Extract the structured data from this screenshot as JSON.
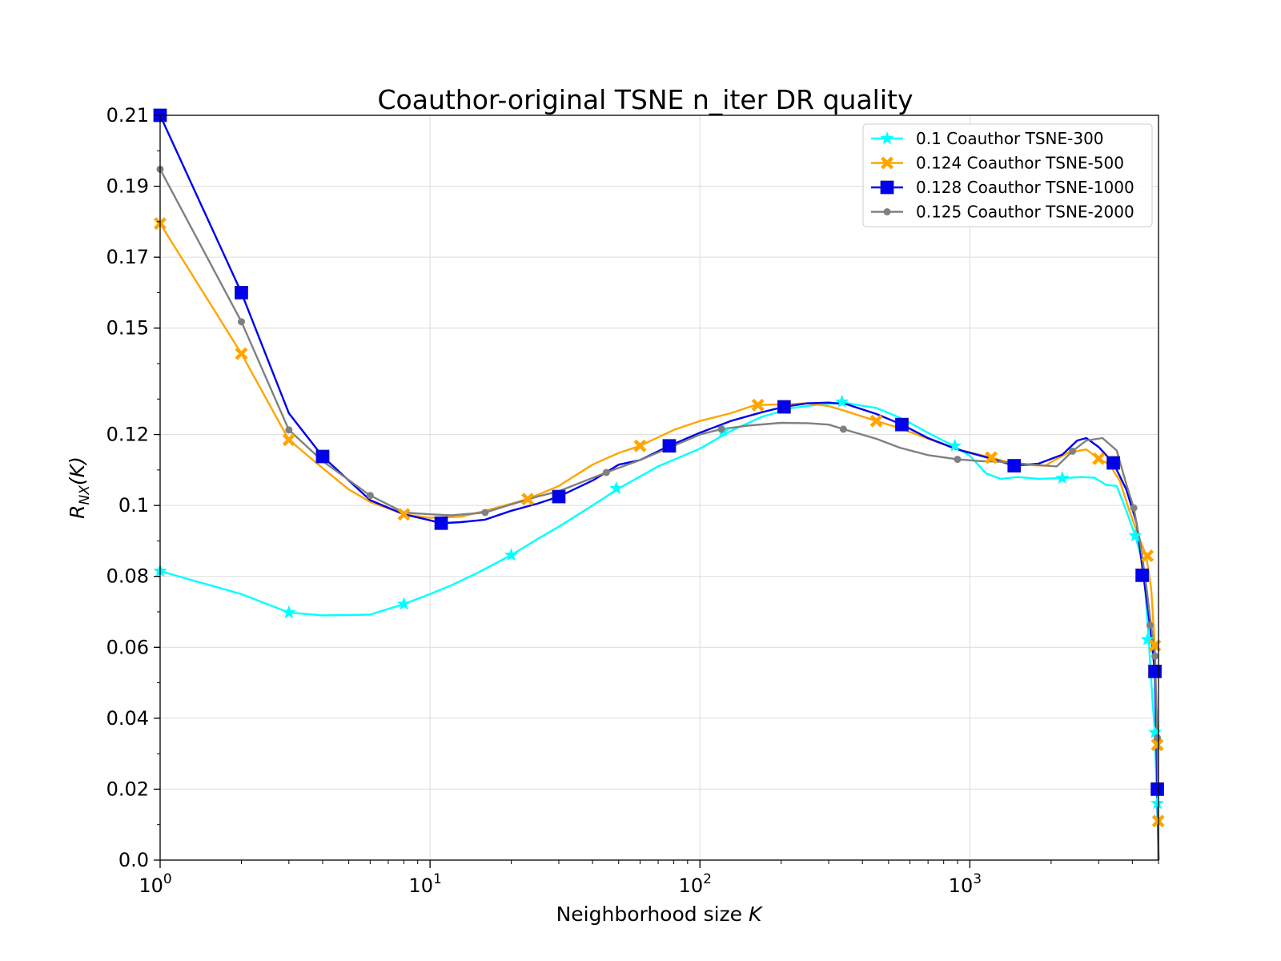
{
  "chart_data": {
    "type": "line",
    "title": "Coauthor-original TSNE n_iter DR quality",
    "xlabel": "Neighborhood size K",
    "ylabel": "R_NX(K)",
    "x_scale": "log",
    "xlim": [
      1,
      5000
    ],
    "ylim": [
      0.0,
      0.21
    ],
    "grid": true,
    "legend_position": "top-right",
    "x_ticks": [
      {
        "value": 1,
        "base": "10",
        "exp": "0"
      },
      {
        "value": 10,
        "base": "10",
        "exp": "1"
      },
      {
        "value": 100,
        "base": "10",
        "exp": "2"
      },
      {
        "value": 1000,
        "base": "10",
        "exp": "3"
      }
    ],
    "y_ticks": [
      {
        "value": 0.0,
        "label": "0.0"
      },
      {
        "value": 0.02,
        "label": "0.02"
      },
      {
        "value": 0.04,
        "label": "0.04"
      },
      {
        "value": 0.06,
        "label": "0.06"
      },
      {
        "value": 0.08,
        "label": "0.08"
      },
      {
        "value": 0.1,
        "label": "0.1"
      },
      {
        "value": 0.12,
        "label": "0.12"
      },
      {
        "value": 0.15,
        "label": "0.15"
      },
      {
        "value": 0.17,
        "label": "0.17"
      },
      {
        "value": 0.19,
        "label": "0.19"
      },
      {
        "value": 0.21,
        "label": "0.21"
      }
    ],
    "series": [
      {
        "name": "0.1 Coauthor TSNE-300",
        "color": "#00ffff",
        "marker": "star",
        "x": [
          1,
          2,
          3,
          4,
          6,
          8,
          10,
          12,
          15,
          20,
          25,
          30,
          40,
          50,
          70,
          100,
          130,
          170,
          220,
          280,
          340,
          450,
          560,
          700,
          870,
          1000,
          1150,
          1300,
          1500,
          1800,
          2200,
          2600,
          2900,
          3200,
          3500,
          3800,
          4100,
          4400,
          4600,
          4750,
          4850,
          4900,
          4950,
          5000
        ],
        "y": [
          0.0815,
          0.075,
          0.0698,
          0.069,
          0.0692,
          0.0722,
          0.075,
          0.0775,
          0.081,
          0.086,
          0.0905,
          0.094,
          0.1,
          0.1048,
          0.111,
          0.116,
          0.121,
          0.125,
          0.1275,
          0.1285,
          0.129,
          0.1275,
          0.1245,
          0.1205,
          0.1168,
          0.114,
          0.109,
          0.1075,
          0.108,
          0.1075,
          0.1077,
          0.108,
          0.1078,
          0.1058,
          0.1055,
          0.0985,
          0.0915,
          0.083,
          0.062,
          0.045,
          0.036,
          0.024,
          0.015,
          0.0
        ],
        "markers_x": [
          1,
          3,
          8,
          20,
          49,
          122,
          204,
          336,
          880,
          2200,
          4100,
          4550,
          4850,
          4950
        ],
        "markers_y": [
          0.0815,
          0.0698,
          0.0722,
          0.086,
          0.1048,
          0.121,
          0.1275,
          0.1292,
          0.1168,
          0.1077,
          0.0915,
          0.0622,
          0.036,
          0.016
        ]
      },
      {
        "name": "0.124 Coauthor TSNE-500",
        "color": "#ffa500",
        "marker": "x",
        "x": [
          1,
          2,
          3,
          4,
          5,
          6,
          8,
          10,
          13,
          16,
          20,
          23,
          30,
          40,
          50,
          60,
          80,
          100,
          130,
          160,
          200,
          250,
          300,
          350,
          450,
          550,
          700,
          900,
          1200,
          1500,
          1900,
          2300,
          2700,
          3000,
          3300,
          3600,
          3900,
          4200,
          4500,
          4700,
          4850,
          4950,
          5000
        ],
        "y": [
          0.1795,
          0.1428,
          0.1185,
          0.1105,
          0.1045,
          0.101,
          0.0975,
          0.0965,
          0.0968,
          0.0985,
          0.1005,
          0.1018,
          0.1055,
          0.1115,
          0.1148,
          0.1168,
          0.1213,
          0.1238,
          0.126,
          0.1283,
          0.1285,
          0.1288,
          0.128,
          0.1265,
          0.1238,
          0.1218,
          0.1188,
          0.1158,
          0.1135,
          0.1115,
          0.1112,
          0.1148,
          0.1158,
          0.1132,
          0.1115,
          0.1068,
          0.0985,
          0.0918,
          0.0858,
          0.0765,
          0.06,
          0.033,
          0.0
        ],
        "markers_x": [
          1,
          2,
          3,
          8,
          23,
          60,
          164,
          450,
          1200,
          3000,
          4550,
          4850,
          4950,
          4990
        ],
        "markers_y": [
          0.1795,
          0.1428,
          0.1185,
          0.0975,
          0.1018,
          0.1168,
          0.1283,
          0.1238,
          0.1135,
          0.1132,
          0.0858,
          0.0605,
          0.0325,
          0.011
        ]
      },
      {
        "name": "0.128 Coauthor TSNE-1000",
        "color": "#0000ee",
        "marker": "square",
        "x": [
          1,
          2,
          3,
          4,
          6,
          8,
          10,
          11,
          13,
          16,
          20,
          25,
          30,
          40,
          50,
          60,
          77,
          100,
          130,
          170,
          205,
          250,
          300,
          350,
          450,
          560,
          700,
          900,
          1200,
          1460,
          1800,
          2200,
          2500,
          2700,
          3000,
          3400,
          3800,
          4150,
          4400,
          4650,
          4850,
          4950,
          5000
        ],
        "y": [
          0.21,
          0.16,
          0.126,
          0.1138,
          0.1015,
          0.0975,
          0.0958,
          0.095,
          0.0953,
          0.096,
          0.0985,
          0.1005,
          0.1025,
          0.107,
          0.1115,
          0.1128,
          0.1168,
          0.1205,
          0.1238,
          0.1263,
          0.1278,
          0.1288,
          0.129,
          0.1285,
          0.1258,
          0.1228,
          0.119,
          0.1158,
          0.1132,
          0.1112,
          0.1118,
          0.1143,
          0.1183,
          0.119,
          0.1165,
          0.112,
          0.1045,
          0.095,
          0.08,
          0.066,
          0.053,
          0.02,
          0.0
        ],
        "markers_x": [
          1,
          2,
          4,
          11,
          30,
          77,
          205,
          560,
          1460,
          3400,
          4350,
          4850,
          4950
        ],
        "markers_y": [
          0.21,
          0.16,
          0.1138,
          0.095,
          0.1025,
          0.1168,
          0.1278,
          0.1228,
          0.1112,
          0.112,
          0.0803,
          0.0532,
          0.02
        ]
      },
      {
        "name": "0.125 Coauthor TSNE-2000",
        "color": "#808080",
        "marker": "circle",
        "x": [
          1,
          2,
          3,
          4,
          6,
          8,
          10,
          12,
          16,
          20,
          25,
          30,
          45,
          60,
          80,
          100,
          120,
          150,
          200,
          250,
          300,
          340,
          450,
          550,
          700,
          900,
          1100,
          1300,
          1700,
          2100,
          2400,
          2700,
          3100,
          3500,
          3800,
          4050,
          4300,
          4500,
          4700,
          4850,
          4950,
          5000
        ],
        "y": [
          0.1948,
          0.1518,
          0.1213,
          0.1125,
          0.1028,
          0.098,
          0.0975,
          0.0972,
          0.098,
          0.1003,
          0.1025,
          0.104,
          0.1093,
          0.1128,
          0.1168,
          0.12,
          0.1215,
          0.1225,
          0.1233,
          0.1232,
          0.1228,
          0.1215,
          0.1188,
          0.1163,
          0.1142,
          0.113,
          0.1125,
          0.1123,
          0.1115,
          0.111,
          0.1153,
          0.1183,
          0.119,
          0.1155,
          0.106,
          0.0993,
          0.0885,
          0.0775,
          0.066,
          0.058,
          0.035,
          0.0
        ],
        "markers_x": [
          1,
          2,
          3,
          6,
          16,
          45,
          120,
          340,
          900,
          2400,
          4050,
          4650,
          4850,
          4950
        ],
        "markers_y": [
          0.1948,
          0.1518,
          0.1213,
          0.1028,
          0.098,
          0.1093,
          0.1215,
          0.1215,
          0.113,
          0.1153,
          0.0993,
          0.0662,
          0.0575,
          0.0345
        ]
      }
    ]
  }
}
